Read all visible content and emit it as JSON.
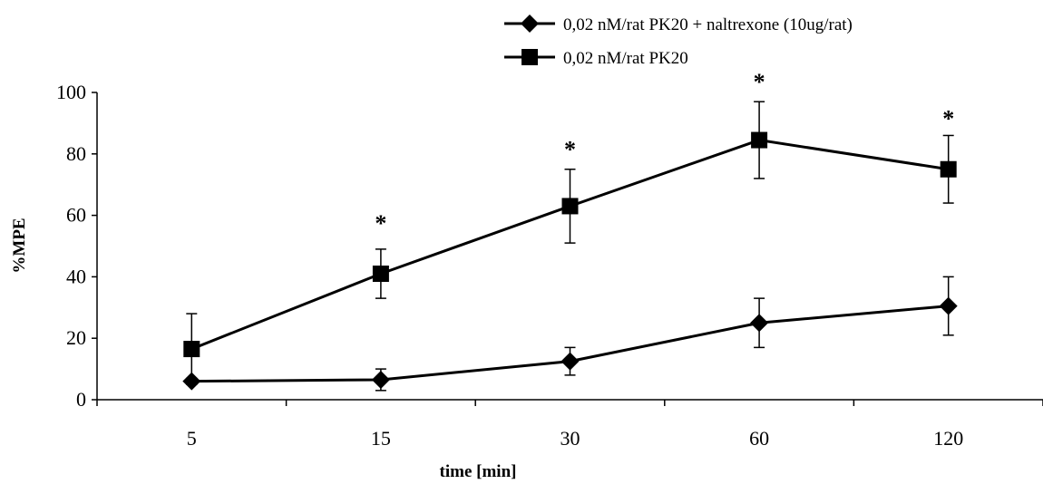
{
  "chart_data": {
    "type": "line",
    "xlabel": "time [min]",
    "ylabel": "%MPE",
    "categories": [
      "5",
      "15",
      "30",
      "60",
      "120"
    ],
    "ylim": [
      0,
      100
    ],
    "yticks": [
      0,
      20,
      40,
      60,
      80,
      100
    ],
    "legend_position": "top-right",
    "grid": false,
    "series": [
      {
        "name": "0,02 nM/rat PK20 + naltrexone (10ug/rat)",
        "marker": "diamond",
        "values": [
          6,
          6.5,
          12.5,
          25,
          30.5
        ],
        "error": [
          1,
          3.5,
          4.5,
          8,
          9.5
        ]
      },
      {
        "name": "0,02 nM/rat PK20",
        "marker": "square",
        "values": [
          16.5,
          41,
          63,
          84.5,
          75
        ],
        "error": [
          11.5,
          8,
          12,
          12.5,
          11
        ]
      }
    ],
    "annotations": [
      {
        "category": "15",
        "text": "*",
        "y": 59
      },
      {
        "category": "30",
        "text": "*",
        "y": 83
      },
      {
        "category": "60",
        "text": "*",
        "y": 105
      },
      {
        "category": "120",
        "text": "*",
        "y": 93
      }
    ]
  }
}
